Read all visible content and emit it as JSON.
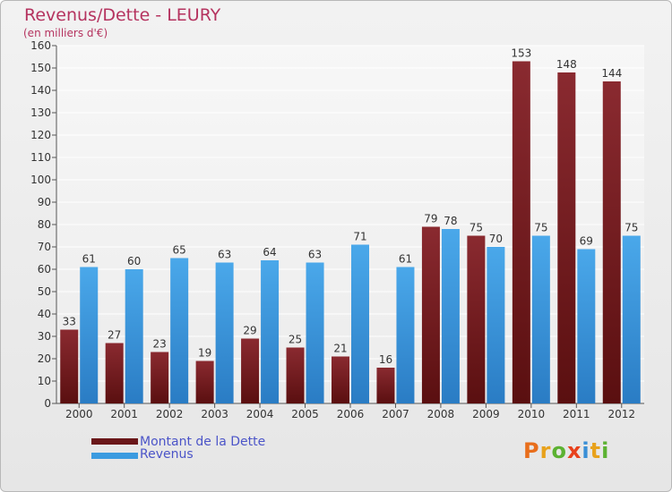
{
  "header": {
    "title": "Revenus/Dette - LEURY",
    "subtitle": "(en milliers d'€)"
  },
  "legend": {
    "items": [
      {
        "label": "Montant de la Dette",
        "color": "#6a1719"
      },
      {
        "label": "Revenus",
        "color": "#3b9be0"
      }
    ]
  },
  "brand": {
    "text": "Proxiti",
    "letter_colors": [
      "#e86e1c",
      "#e8a21c",
      "#5cb232",
      "#e8411c",
      "#3a8fd6",
      "#e8a21c",
      "#5cb232"
    ]
  },
  "chart_data": {
    "type": "bar",
    "title": "Revenus/Dette - LEURY",
    "subtitle": "(en milliers d'€)",
    "categories": [
      "2000",
      "2001",
      "2002",
      "2003",
      "2004",
      "2005",
      "2006",
      "2007",
      "2008",
      "2009",
      "2010",
      "2011",
      "2012"
    ],
    "series": [
      {
        "name": "Montant de la Dette",
        "color": "#6a1719",
        "values": [
          33,
          27,
          23,
          19,
          29,
          25,
          21,
          16,
          79,
          75,
          153,
          148,
          144
        ]
      },
      {
        "name": "Revenus",
        "color": "#3b9be0",
        "values": [
          61,
          60,
          65,
          63,
          64,
          63,
          71,
          61,
          78,
          70,
          75,
          69,
          75
        ]
      }
    ],
    "ylim": [
      0,
      160
    ],
    "yticks": [
      0,
      10,
      20,
      30,
      40,
      50,
      60,
      70,
      80,
      90,
      100,
      110,
      120,
      130,
      140,
      150,
      160
    ],
    "grid": true,
    "legend_position": "bottom-left"
  }
}
